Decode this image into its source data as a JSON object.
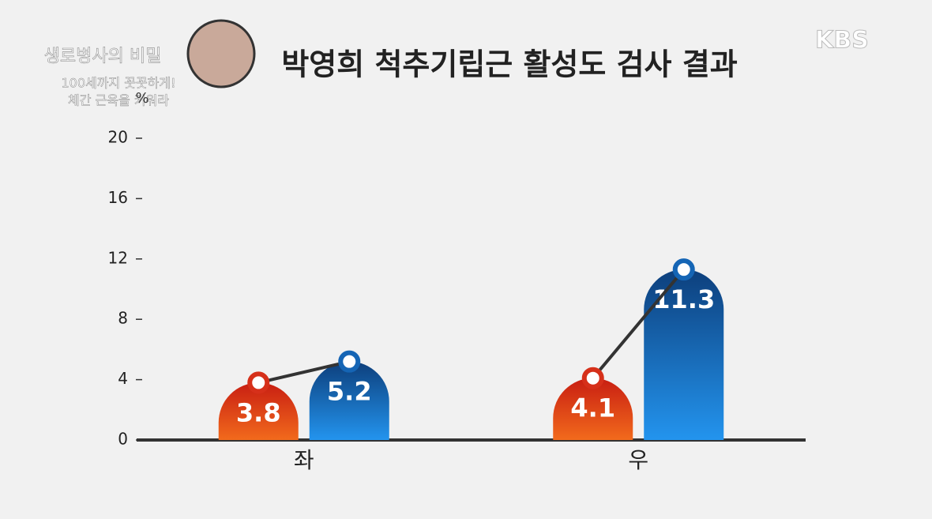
{
  "broadcast": {
    "logo": "KBS",
    "program": "생로병사의 비밀",
    "episode": [
      "100세까지 꼿꼿하게!",
      "체간 근육을 키워라"
    ]
  },
  "chart_data": {
    "type": "bar",
    "title": "박영희 척추기립근 활성도 검사 결과",
    "y_label": "%",
    "categories": [
      "좌",
      "우"
    ],
    "series": [
      {
        "color": "#d6301a",
        "values": [
          3.8,
          4.1
        ]
      },
      {
        "color": "#1565b5",
        "values": [
          5.2,
          11.3
        ]
      }
    ],
    "ylim": [
      0,
      20
    ],
    "yticks": [
      0,
      4,
      8,
      12,
      16,
      20
    ]
  }
}
